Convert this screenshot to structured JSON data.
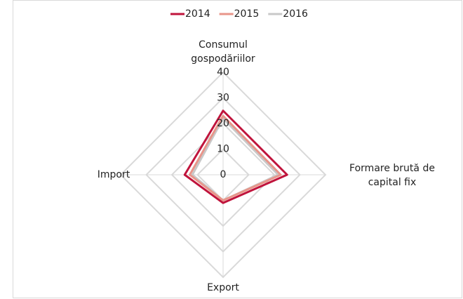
{
  "chart_data": {
    "type": "radar",
    "categories": [
      "Consumul gospodăriilor",
      "Formare brută de capital fix",
      "Export",
      "Import"
    ],
    "series": [
      {
        "name": "2014",
        "color": "#c0143c",
        "values": [
          25,
          25,
          11,
          15
        ]
      },
      {
        "name": "2015",
        "color": "#e8958a",
        "values": [
          23,
          22.5,
          10,
          13
        ]
      },
      {
        "name": "2016",
        "color": "#c8c8c8",
        "values": [
          22,
          21.5,
          10,
          12
        ]
      }
    ],
    "ylim": [
      0,
      40
    ],
    "yticks": [
      0,
      10,
      20,
      30,
      40
    ],
    "grid": true,
    "legend": "top"
  }
}
